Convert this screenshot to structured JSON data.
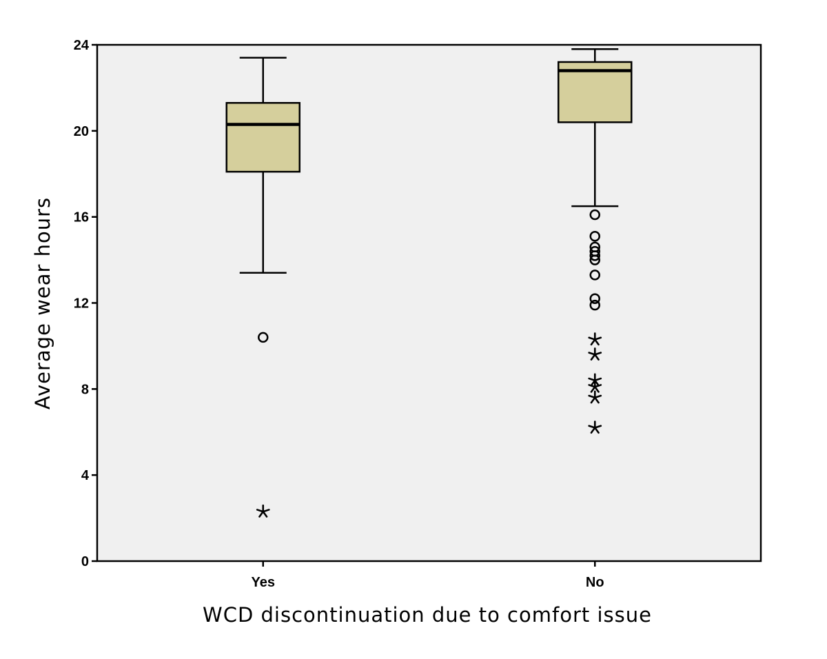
{
  "chart_data": {
    "type": "boxplot",
    "xlabel": "WCD discontinuation due to comfort issue",
    "ylabel": "Average wear hours",
    "ylim": [
      0,
      24
    ],
    "yticks": [
      "0",
      "4",
      "8",
      "12",
      "16",
      "20",
      "24"
    ],
    "grid": false,
    "colors": {
      "box": "#d5cf9c",
      "plot_bg": "#f0f0f0",
      "line": "#000000"
    },
    "categories": [
      "Yes",
      "No"
    ],
    "boxes": [
      {
        "name": "Yes",
        "whisker_low": 13.4,
        "q1": 18.1,
        "median": 20.3,
        "q3": 21.3,
        "whisker_high": 23.4,
        "outliers": [
          10.4
        ],
        "extremes": [
          2.3
        ]
      },
      {
        "name": "No",
        "whisker_low": 16.5,
        "q1": 20.4,
        "median": 22.8,
        "q3": 23.2,
        "whisker_high": 23.8,
        "outliers": [
          16.1,
          15.1,
          14.6,
          14.4,
          14.2,
          14.0,
          13.3,
          12.2,
          11.9
        ],
        "extremes": [
          10.3,
          9.6,
          8.4,
          8.1,
          7.6,
          6.2
        ]
      }
    ]
  }
}
